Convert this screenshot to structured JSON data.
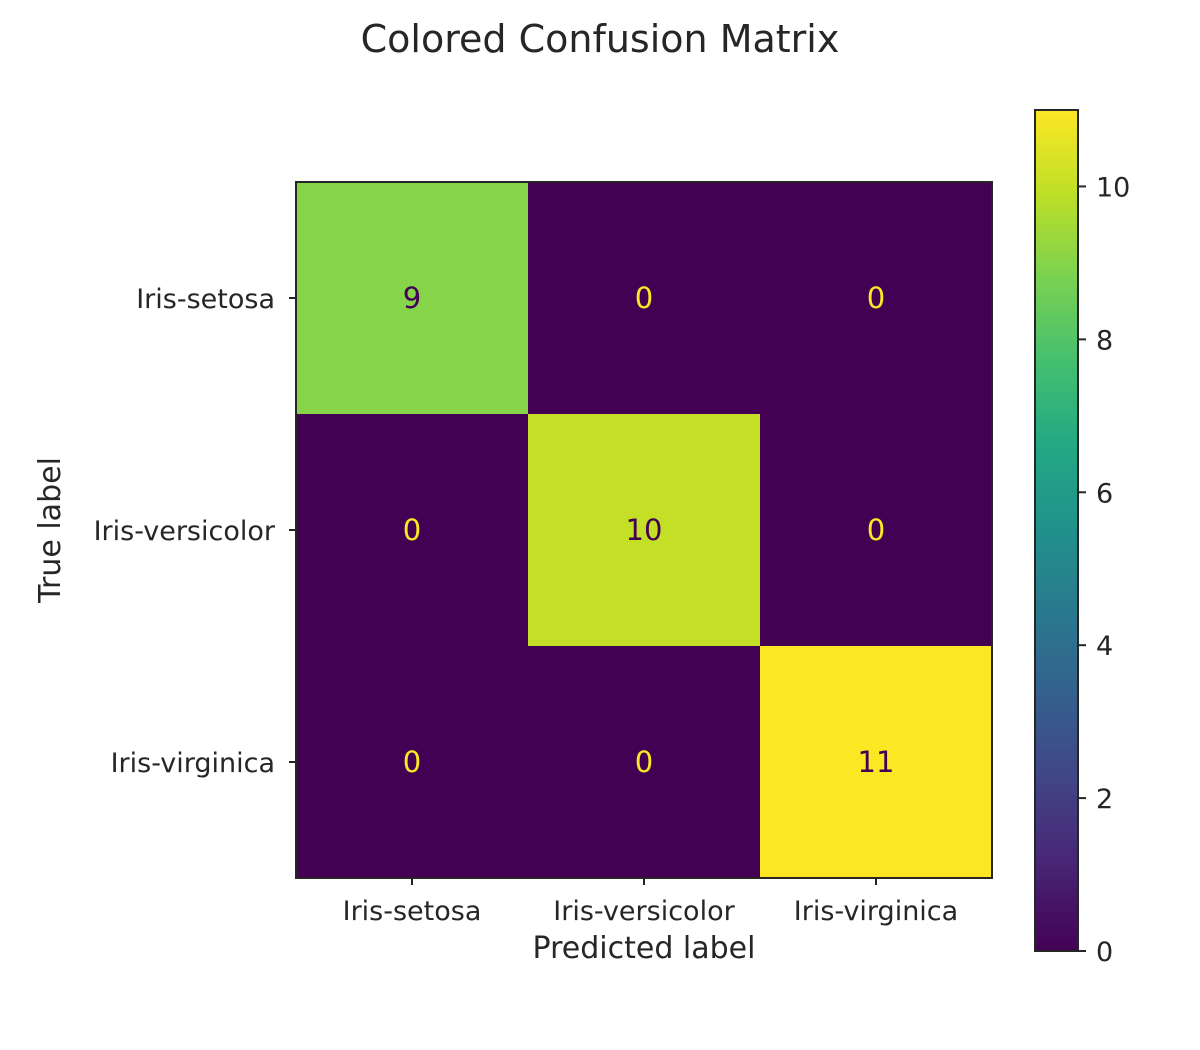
{
  "chart_data": {
    "type": "heatmap",
    "title": "Colored Confusion Matrix",
    "xlabel": "Predicted label",
    "ylabel": "True label",
    "x_categories": [
      "Iris-setosa",
      "Iris-versicolor",
      "Iris-virginica"
    ],
    "y_categories": [
      "Iris-setosa",
      "Iris-versicolor",
      "Iris-virginica"
    ],
    "values": [
      [
        9,
        0,
        0
      ],
      [
        0,
        10,
        0
      ],
      [
        0,
        0,
        11
      ]
    ],
    "colormap": "viridis",
    "colorbar": {
      "range": [
        0,
        11
      ],
      "ticks": [
        0,
        2,
        4,
        6,
        8,
        10
      ]
    },
    "annotation_colors": {
      "on_dark": "#fde725",
      "on_light": "#440154"
    }
  }
}
